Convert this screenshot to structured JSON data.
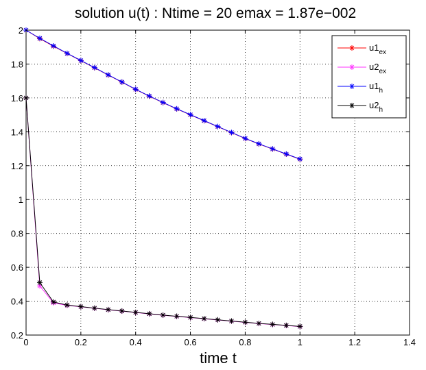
{
  "chart_data": {
    "type": "line",
    "title": "solution u(t) :   Ntime =   20   emax =  1.87e−002",
    "xlabel": "time t",
    "ylabel": "",
    "xlim": [
      0,
      1.4
    ],
    "ylim": [
      0.2,
      2.0
    ],
    "xticks": [
      "0",
      "0.2",
      "0.4",
      "0.6",
      "0.8",
      "1",
      "1.2",
      "1.4"
    ],
    "yticks": [
      "0.2",
      "0.4",
      "0.6",
      "0.8",
      "1",
      "1.2",
      "1.4",
      "1.6",
      "1.8",
      "2"
    ],
    "xtick_values": [
      0,
      0.2,
      0.4,
      0.6,
      0.8,
      1.0,
      1.2,
      1.4
    ],
    "ytick_values": [
      0.2,
      0.4,
      0.6,
      0.8,
      1.0,
      1.2,
      1.4,
      1.6,
      1.8,
      2.0
    ],
    "grid": true,
    "legend_position": "top-right",
    "x": [
      0,
      0.05,
      0.1,
      0.15,
      0.2,
      0.25,
      0.3,
      0.35,
      0.4,
      0.45,
      0.5,
      0.55,
      0.6,
      0.65,
      0.7,
      0.75,
      0.8,
      0.85,
      0.9,
      0.95,
      1.0
    ],
    "series": [
      {
        "name": "u1",
        "sub": "ex",
        "color": "#ff0000",
        "values": [
          2.0,
          1.95,
          1.905,
          1.862,
          1.82,
          1.778,
          1.735,
          1.693,
          1.65,
          1.61,
          1.572,
          1.535,
          1.5,
          1.465,
          1.43,
          1.395,
          1.36,
          1.328,
          1.298,
          1.268,
          1.238
        ]
      },
      {
        "name": "u2",
        "sub": "ex",
        "color": "#ff33ff",
        "values": [
          1.6,
          0.49,
          0.39,
          0.375,
          0.367,
          0.358,
          0.349,
          0.341,
          0.333,
          0.325,
          0.317,
          0.31,
          0.303,
          0.296,
          0.289,
          0.282,
          0.275,
          0.268,
          0.262,
          0.256,
          0.25
        ]
      },
      {
        "name": "u1",
        "sub": "h",
        "color": "#0000ff",
        "values": [
          2.0,
          1.952,
          1.907,
          1.863,
          1.821,
          1.779,
          1.736,
          1.694,
          1.651,
          1.611,
          1.573,
          1.536,
          1.501,
          1.466,
          1.431,
          1.396,
          1.361,
          1.329,
          1.299,
          1.269,
          1.239
        ]
      },
      {
        "name": "u2",
        "sub": "h",
        "color": "#000000",
        "values": [
          1.6,
          0.51,
          0.395,
          0.377,
          0.368,
          0.359,
          0.35,
          0.342,
          0.334,
          0.326,
          0.318,
          0.311,
          0.304,
          0.297,
          0.29,
          0.283,
          0.276,
          0.269,
          0.263,
          0.257,
          0.251
        ]
      }
    ]
  }
}
